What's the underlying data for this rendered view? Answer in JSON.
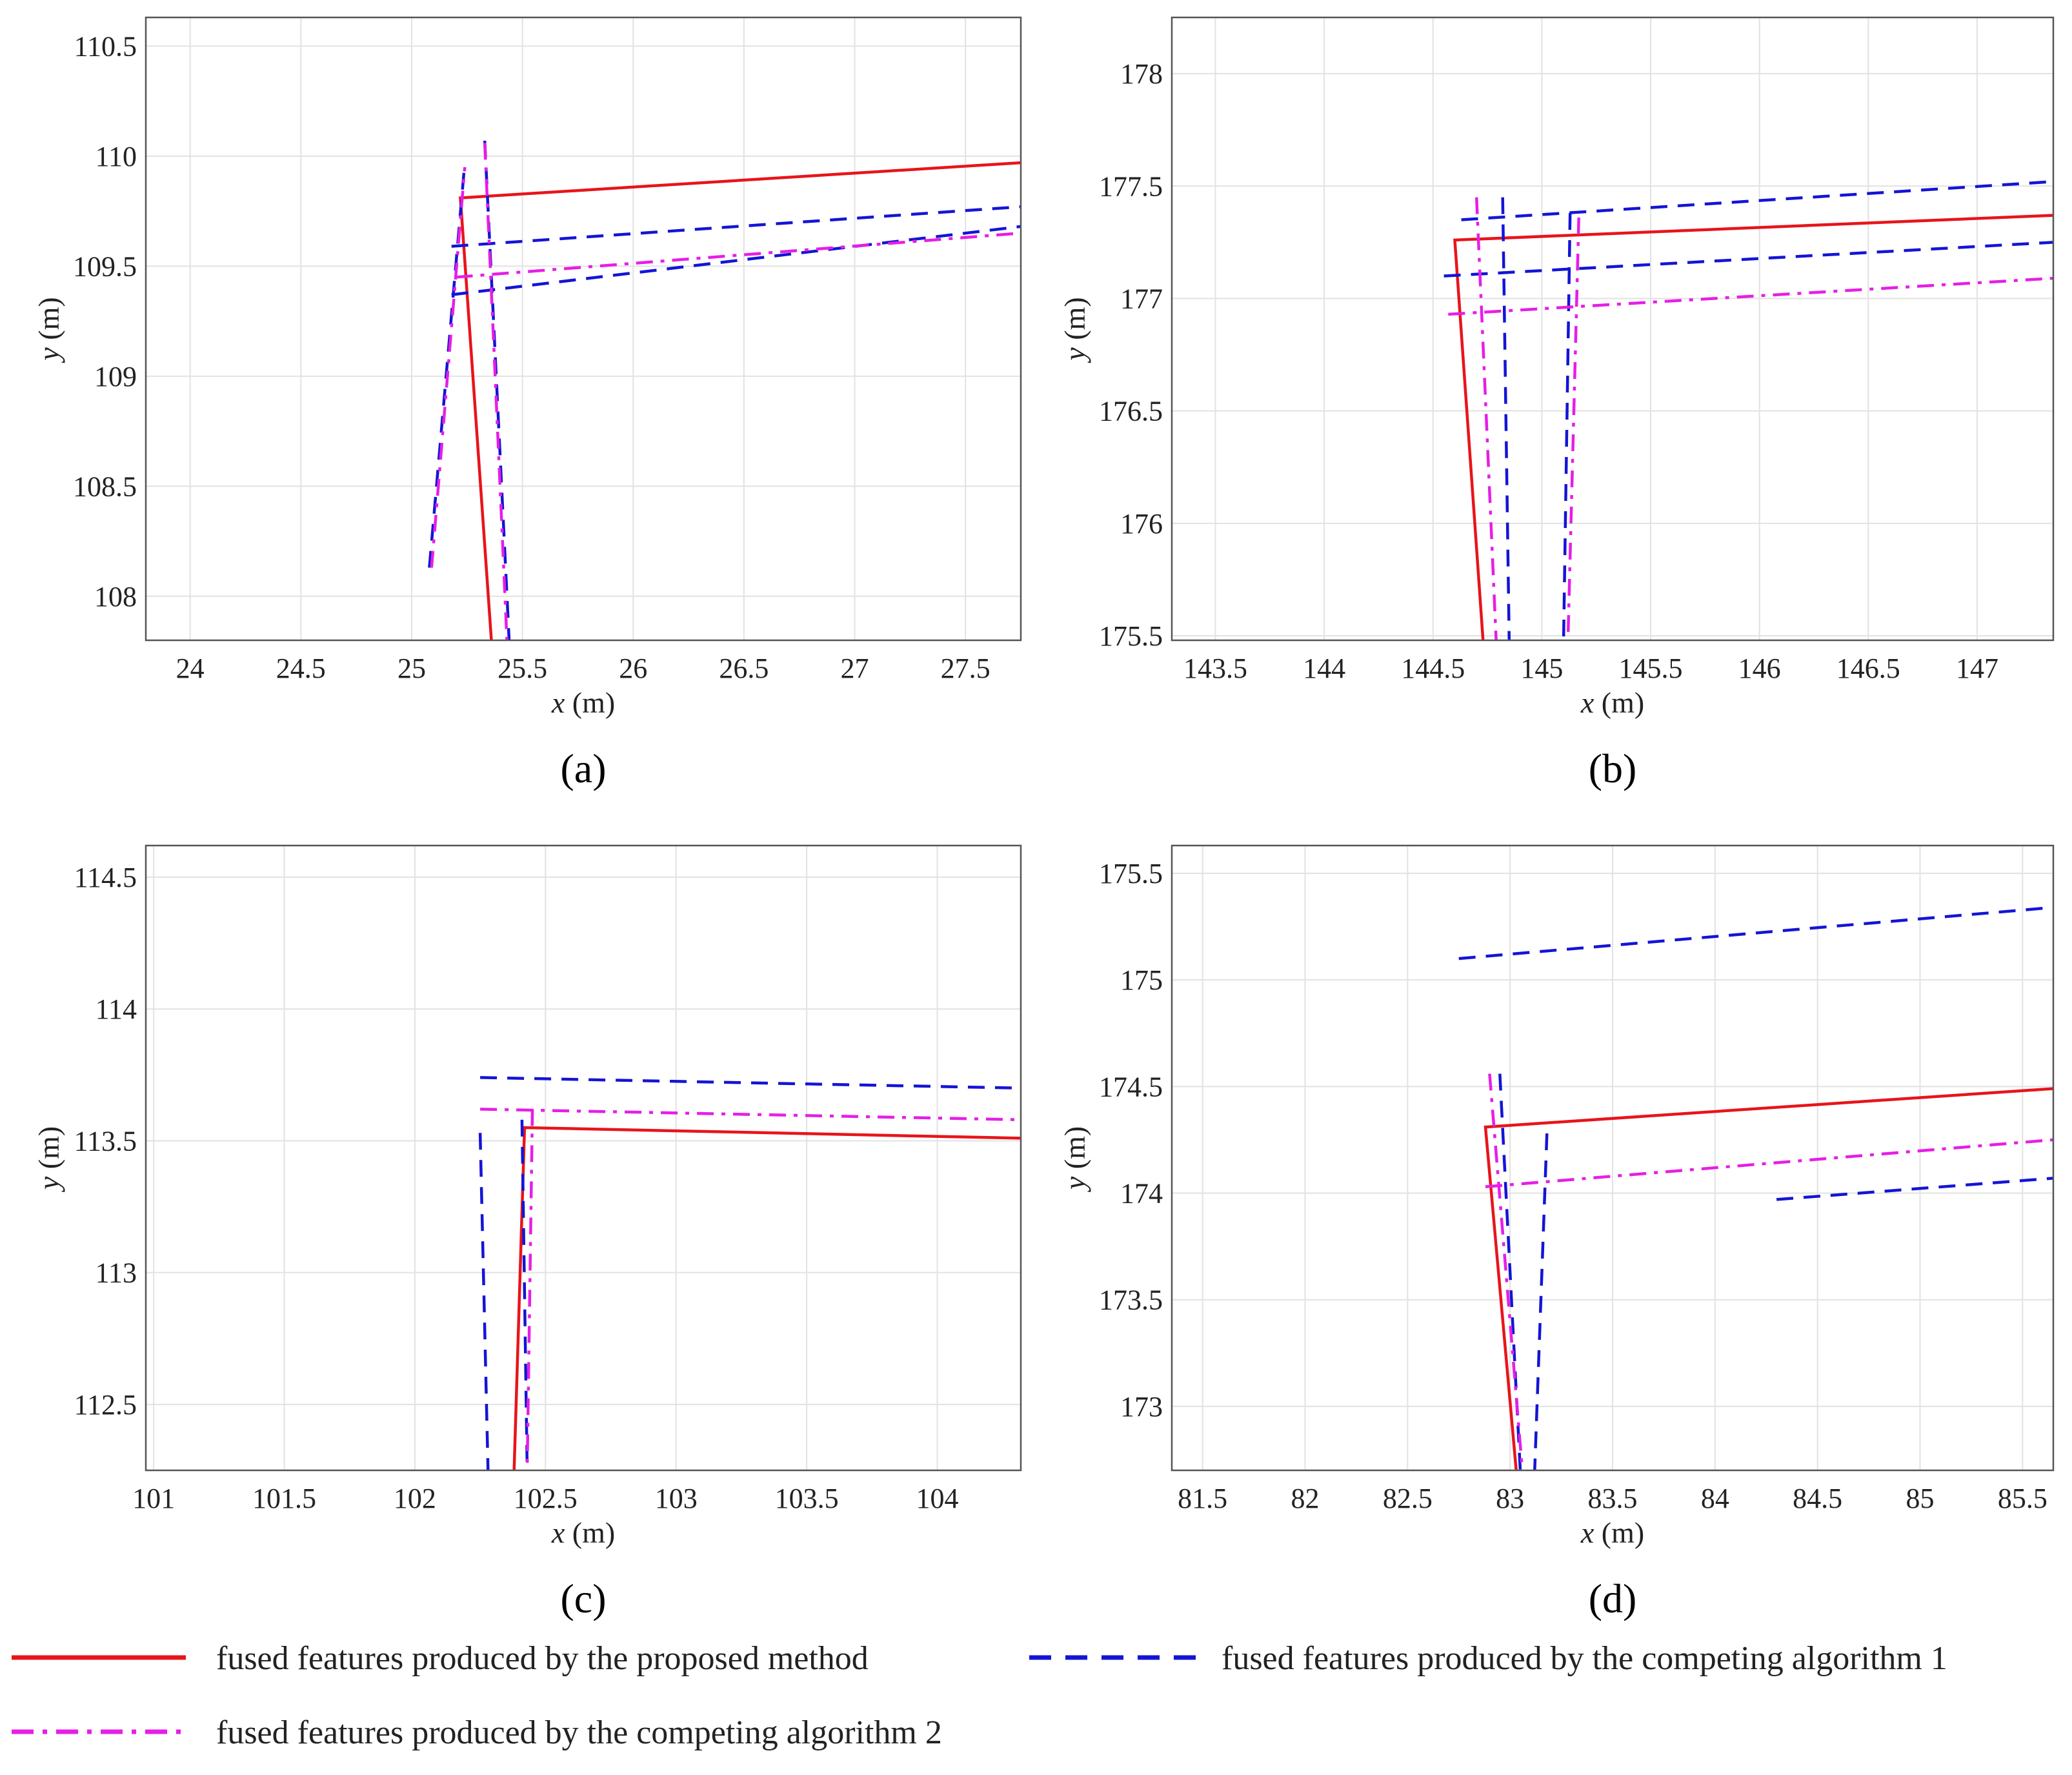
{
  "chart_data": [
    {
      "type": "line",
      "panel_label": "(a)",
      "xlabel": {
        "var": "x",
        "unit": " (m)"
      },
      "ylabel": {
        "var": "y",
        "unit": " (m)"
      },
      "xlim": [
        23.8,
        27.75
      ],
      "ylim": [
        107.8,
        110.63
      ],
      "xticks": [
        24,
        24.5,
        25,
        25.5,
        26,
        26.5,
        27,
        27.5
      ],
      "xtick_labels": [
        "24",
        "24.5",
        "25",
        "25.5",
        "26",
        "26.5",
        "27",
        "27.5"
      ],
      "yticks": [
        108,
        108.5,
        109,
        109.5,
        110,
        110.5
      ],
      "ytick_labels": [
        "108",
        "108.5",
        "109",
        "109.5",
        "110",
        "110.5"
      ],
      "grid": true,
      "series": [
        {
          "name": "proposed",
          "style": "solid",
          "color": "#e8141b",
          "segments": [
            [
              [
                25.36,
                107.8
              ],
              [
                25.22,
                109.81
              ],
              [
                27.75,
                109.97
              ]
            ]
          ]
        },
        {
          "name": "competing1",
          "style": "dashed",
          "color": "#1414d6",
          "segments": [
            [
              [
                25.08,
                108.13
              ],
              [
                25.24,
                109.97
              ]
            ],
            [
              [
                25.33,
                110.07
              ],
              [
                25.44,
                107.8
              ]
            ],
            [
              [
                25.18,
                109.59
              ],
              [
                27.75,
                109.77
              ]
            ],
            [
              [
                25.18,
                109.37
              ],
              [
                27.75,
                109.68
              ]
            ]
          ]
        },
        {
          "name": "competing2",
          "style": "dashdot",
          "color": "#e61ee6",
          "segments": [
            [
              [
                25.09,
                108.13
              ],
              [
                25.24,
                109.95
              ]
            ],
            [
              [
                25.33,
                110.06
              ],
              [
                25.43,
                107.8
              ]
            ],
            [
              [
                25.2,
                109.45
              ],
              [
                27.75,
                109.65
              ]
            ]
          ]
        }
      ]
    },
    {
      "type": "line",
      "panel_label": "(b)",
      "xlabel": {
        "var": "x",
        "unit": " (m)"
      },
      "ylabel": {
        "var": "y",
        "unit": " (m)"
      },
      "xlim": [
        143.3,
        147.35
      ],
      "ylim": [
        175.48,
        178.25
      ],
      "xticks": [
        143.5,
        144,
        144.5,
        145,
        145.5,
        146,
        146.5,
        147
      ],
      "xtick_labels": [
        "143.5",
        "144",
        "144.5",
        "145",
        "145.5",
        "146",
        "146.5",
        "147"
      ],
      "yticks": [
        175.5,
        176,
        176.5,
        177,
        177.5,
        178
      ],
      "ytick_labels": [
        "175.5",
        "176",
        "176.5",
        "177",
        "177.5",
        "178"
      ],
      "grid": true,
      "series": [
        {
          "name": "proposed",
          "style": "solid",
          "color": "#e8141b",
          "segments": [
            [
              [
                144.73,
                175.48
              ],
              [
                144.6,
                177.26
              ],
              [
                147.35,
                177.37
              ]
            ]
          ]
        },
        {
          "name": "competing1",
          "style": "dashed",
          "color": "#1414d6",
          "segments": [
            [
              [
                144.82,
                177.45
              ],
              [
                144.85,
                175.48
              ]
            ],
            [
              [
                145.13,
                177.38
              ],
              [
                145.1,
                175.48
              ]
            ],
            [
              [
                144.63,
                177.35
              ],
              [
                147.35,
                177.52
              ]
            ],
            [
              [
                144.55,
                177.1
              ],
              [
                147.35,
                177.25
              ]
            ]
          ]
        },
        {
          "name": "competing2",
          "style": "dashdot",
          "color": "#e61ee6",
          "segments": [
            [
              [
                144.7,
                177.45
              ],
              [
                144.79,
                175.48
              ]
            ],
            [
              [
                145.17,
                177.36
              ],
              [
                145.12,
                175.48
              ]
            ],
            [
              [
                144.57,
                176.93
              ],
              [
                147.35,
                177.09
              ]
            ]
          ]
        }
      ]
    },
    {
      "type": "line",
      "panel_label": "(c)",
      "xlabel": {
        "var": "x",
        "unit": " (m)"
      },
      "ylabel": {
        "var": "y",
        "unit": " (m)"
      },
      "xlim": [
        100.97,
        104.32
      ],
      "ylim": [
        112.25,
        114.62
      ],
      "xticks": [
        101,
        101.5,
        102,
        102.5,
        103,
        103.5,
        104
      ],
      "xtick_labels": [
        "101",
        "101.5",
        "102",
        "102.5",
        "103",
        "103.5",
        "104"
      ],
      "yticks": [
        112.5,
        113,
        113.5,
        114,
        114.5
      ],
      "ytick_labels": [
        "112.5",
        "113",
        "113.5",
        "114",
        "114.5"
      ],
      "grid": true,
      "series": [
        {
          "name": "proposed",
          "style": "solid",
          "color": "#e8141b",
          "segments": [
            [
              [
                102.38,
                112.25
              ],
              [
                102.42,
                113.55
              ],
              [
                104.32,
                113.51
              ]
            ]
          ]
        },
        {
          "name": "competing1",
          "style": "dashed",
          "color": "#1414d6",
          "segments": [
            [
              [
                102.25,
                113.53
              ],
              [
                102.28,
                112.25
              ]
            ],
            [
              [
                102.41,
                113.58
              ],
              [
                102.43,
                112.25
              ]
            ],
            [
              [
                102.25,
                113.74
              ],
              [
                104.32,
                113.7
              ]
            ]
          ]
        },
        {
          "name": "competing2",
          "style": "dashdot",
          "color": "#e61ee6",
          "segments": [
            [
              [
                102.25,
                113.62
              ],
              [
                104.32,
                113.58
              ]
            ],
            [
              [
                102.45,
                113.62
              ],
              [
                102.43,
                112.25
              ]
            ]
          ]
        }
      ]
    },
    {
      "type": "line",
      "panel_label": "(d)",
      "xlabel": {
        "var": "x",
        "unit": " (m)"
      },
      "ylabel": {
        "var": "y",
        "unit": " (m)"
      },
      "xlim": [
        81.35,
        85.65
      ],
      "ylim": [
        172.7,
        175.63
      ],
      "xticks": [
        81.5,
        82,
        82.5,
        83,
        83.5,
        84,
        84.5,
        85,
        85.5
      ],
      "xtick_labels": [
        "81.5",
        "82",
        "82.5",
        "83",
        "83.5",
        "84",
        "84.5",
        "85",
        "85.5"
      ],
      "yticks": [
        173,
        173.5,
        174,
        174.5,
        175,
        175.5
      ],
      "ytick_labels": [
        "173",
        "173.5",
        "174",
        "174.5",
        "175",
        "175.5"
      ],
      "grid": true,
      "series": [
        {
          "name": "proposed",
          "style": "solid",
          "color": "#e8141b",
          "segments": [
            [
              [
                83.03,
                172.7
              ],
              [
                82.88,
                174.31
              ],
              [
                85.65,
                174.49
              ]
            ]
          ]
        },
        {
          "name": "competing1",
          "style": "dashed",
          "color": "#1414d6",
          "segments": [
            [
              [
                82.75,
                175.1
              ],
              [
                85.65,
                175.34
              ]
            ],
            [
              [
                82.95,
                174.56
              ],
              [
                83.05,
                172.7
              ]
            ],
            [
              [
                83.18,
                174.28
              ],
              [
                83.12,
                172.7
              ]
            ],
            [
              [
                84.3,
                173.97
              ],
              [
                85.65,
                174.07
              ]
            ]
          ]
        },
        {
          "name": "competing2",
          "style": "dashdot",
          "color": "#e61ee6",
          "segments": [
            [
              [
                82.9,
                174.56
              ],
              [
                83.06,
                172.7
              ]
            ],
            [
              [
                82.88,
                174.03
              ],
              [
                85.65,
                174.25
              ]
            ]
          ]
        }
      ]
    }
  ],
  "legend": [
    {
      "label": "fused features produced by the proposed method",
      "style": "solid",
      "color": "#e8141b"
    },
    {
      "label": "fused features produced by the competing algorithm 1",
      "style": "dashed",
      "color": "#1414d6"
    },
    {
      "label": "fused features produced by the competing algorithm 2",
      "style": "dashdot",
      "color": "#e61ee6"
    }
  ]
}
